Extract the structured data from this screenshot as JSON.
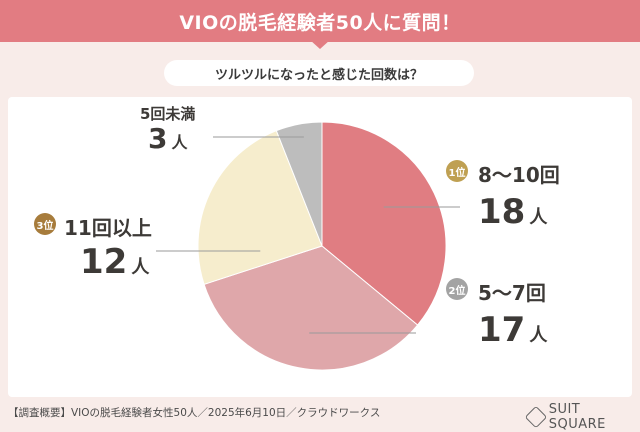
{
  "header": {
    "title": "VIOの脱毛経験者50人に質問！"
  },
  "question": "ツルツルになったと感じた回数は？",
  "chart_data": {
    "type": "pie",
    "slices": [
      {
        "label": "8〜10回",
        "value": 18,
        "rank": "1位",
        "color": "#e07d82"
      },
      {
        "label": "5〜7回",
        "value": 17,
        "rank": "2位",
        "color": "#dfa7aa"
      },
      {
        "label": "11回以上",
        "value": 12,
        "rank": "3位",
        "color": "#f6edcd"
      },
      {
        "label": "5回未満",
        "value": 3,
        "rank": "",
        "color": "#bdbdbd"
      }
    ],
    "unit": "人",
    "medal_colors": [
      "#bfa052",
      "#a3a3a3",
      "#a77c3c"
    ]
  },
  "footer": {
    "source": "【調査概要】VIOの脱毛経験者女性50人／2025年6月10日／クラウドワークス",
    "brand": "SUIT SQUARE"
  }
}
